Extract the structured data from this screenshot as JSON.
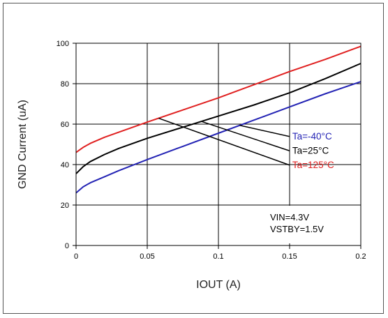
{
  "chart_data": {
    "type": "line",
    "xlabel": "IOUT (A)",
    "ylabel": "GND Current (uA)",
    "xlim": [
      0,
      0.2
    ],
    "ylim": [
      0,
      100
    ],
    "x_ticks": [
      "0",
      "0.05",
      "0.1",
      "0.15",
      "0.2"
    ],
    "y_ticks": [
      "0",
      "20",
      "40",
      "60",
      "80",
      "100"
    ],
    "grid": true,
    "legend_position": "right-middle",
    "series": [
      {
        "name": "Ta=-40°C",
        "color": "#2323b4",
        "x": [
          0,
          0.005,
          0.01,
          0.02,
          0.03,
          0.05,
          0.075,
          0.1,
          0.125,
          0.15,
          0.175,
          0.2
        ],
        "y": [
          26,
          29,
          31,
          34,
          37,
          42.5,
          49,
          55.5,
          62,
          68.5,
          75,
          81
        ]
      },
      {
        "name": "Ta=25°C",
        "color": "#000000",
        "x": [
          0,
          0.005,
          0.01,
          0.02,
          0.03,
          0.05,
          0.075,
          0.1,
          0.125,
          0.15,
          0.175,
          0.2
        ],
        "y": [
          35.5,
          39,
          41.5,
          45,
          48,
          53,
          58.5,
          64,
          69.5,
          75.5,
          82.5,
          90
        ]
      },
      {
        "name": "Ta=125°C",
        "color": "#e02020",
        "x": [
          0,
          0.005,
          0.01,
          0.02,
          0.03,
          0.05,
          0.075,
          0.1,
          0.125,
          0.15,
          0.175,
          0.2
        ],
        "y": [
          46,
          48.5,
          50.5,
          53.5,
          56,
          61,
          67,
          73,
          79.5,
          86,
          92,
          98.5
        ]
      }
    ],
    "annotations": [
      "VIN=4.3V",
      "VSTBY=1.5V"
    ]
  }
}
